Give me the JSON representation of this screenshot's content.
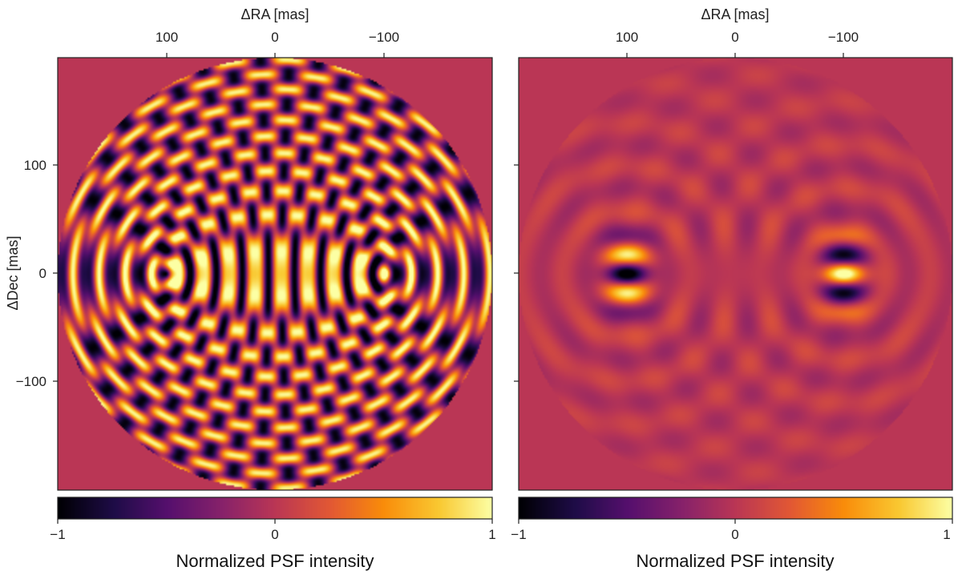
{
  "chart_data": [
    {
      "type": "heatmap",
      "panel": "left",
      "description": "Symmetric PSF pair: interference pattern with a negative (dark) peak at +100 mas and a positive (bright) peak at -100 mas, fringes within circular aperture",
      "xlabel": "ΔRA [mas]",
      "ylabel": "ΔDec [mas]",
      "xlim": [
        200,
        -200
      ],
      "ylim": [
        -200,
        200
      ],
      "x_ticks": [
        100,
        0,
        -100
      ],
      "x_tick_labels": [
        "100",
        "0",
        "−100"
      ],
      "y_ticks": [
        100,
        0,
        -100
      ],
      "y_tick_labels": [
        "100",
        "0",
        "−100"
      ],
      "aperture_radius": 200,
      "sources": [
        {
          "ra": 100,
          "dec": 0,
          "sign": -1
        },
        {
          "ra": -100,
          "dec": 0,
          "sign": 1
        }
      ],
      "colorbar": {
        "colormap": "inferno",
        "range": [
          -1,
          1
        ],
        "ticks": [
          -1,
          0,
          1
        ],
        "tick_labels": [
          "−1",
          "0",
          "1"
        ],
        "label": "Normalized PSF intensity"
      }
    },
    {
      "type": "heatmap",
      "panel": "right",
      "description": "Separated PSF components: dark-centered lobe at +100 mas and bright-centered lobe at -100 mas with concentric ring structure",
      "xlabel": "ΔRA [mas]",
      "ylabel": "",
      "xlim": [
        200,
        -200
      ],
      "ylim": [
        -200,
        200
      ],
      "x_ticks": [
        100,
        0,
        -100
      ],
      "x_tick_labels": [
        "100",
        "0",
        "−100"
      ],
      "y_ticks": [
        100,
        0,
        -100
      ],
      "aperture_radius": 200,
      "sources": [
        {
          "ra": 100,
          "dec": 0,
          "sign": -1
        },
        {
          "ra": -100,
          "dec": 0,
          "sign": 1
        }
      ],
      "colorbar": {
        "colormap": "inferno",
        "range": [
          -1,
          1
        ],
        "ticks": [
          -1,
          0,
          1
        ],
        "tick_labels": [
          "−1",
          "0",
          "1"
        ],
        "label": "Normalized PSF intensity"
      }
    }
  ]
}
